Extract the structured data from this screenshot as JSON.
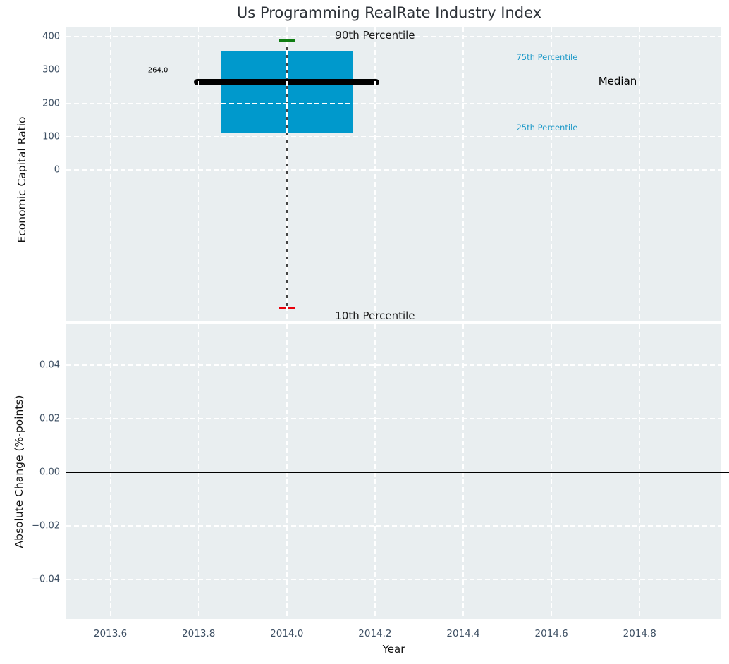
{
  "figure": {
    "title": "Us Programming RealRate Industry Index",
    "plot_bg_color": "#e9eef0",
    "grid_color": "#ffffff",
    "tick_color": "#3d4f63"
  },
  "chart_data": [
    {
      "type": "boxplot",
      "title": "Us Programming RealRate Industry Index",
      "ylabel": "Economic Capital Ratio",
      "xlabel": "",
      "grid": "white-dashed",
      "xlim": [
        2013.5,
        2014.985
      ],
      "ylim": [
        -455,
        430
      ],
      "yticks": [
        400,
        300,
        200,
        100,
        0
      ],
      "ytick_labels": [
        "400",
        "300",
        "200",
        "100",
        "0"
      ],
      "xticks": [
        2013.6,
        2013.8,
        2014.0,
        2014.2,
        2014.4,
        2014.6,
        2014.8
      ],
      "series": [
        {
          "name": "Economic Capital Ratio boxplot",
          "center_x": 2014.0,
          "p10": -415,
          "q1": 112,
          "median": 264,
          "q3": 355,
          "p90": 388,
          "box_span": [
            2013.85,
            2014.15
          ],
          "median_span": [
            2013.79,
            2014.21
          ],
          "cap_half_width": 0.018,
          "colors": {
            "box_fill": "#0099cc",
            "median_line": "#000000",
            "whisker": "#444444",
            "p90_cap": "#0f7d12",
            "p10_cap": "#e8000b"
          }
        }
      ],
      "annotations": [
        {
          "name": "annotation-90th-percentile",
          "text": "90th Percentile",
          "x": 2014.2,
          "y": 405,
          "color": "#1a1a1a",
          "size": 15
        },
        {
          "name": "annotation-10th-percentile",
          "text": "10th Percentile",
          "x": 2014.2,
          "y": -439,
          "color": "#1a1a1a",
          "size": 15
        },
        {
          "name": "annotation-median-value",
          "text": "264.0",
          "x": 2013.708,
          "y": 298,
          "color": "#000000",
          "size": 10
        },
        {
          "name": "annotation-75th-percentile",
          "text": "75th Percentile",
          "x": 2014.59,
          "y": 340,
          "color": "#1f9ac9",
          "size": 11.5
        },
        {
          "name": "annotation-median",
          "text": "Median",
          "x": 2014.75,
          "y": 267,
          "color": "#000000",
          "size": 15
        },
        {
          "name": "annotation-25th-percentile",
          "text": "25th Percentile",
          "x": 2014.59,
          "y": 128,
          "color": "#1f9ac9",
          "size": 11.5
        }
      ]
    },
    {
      "type": "line",
      "title": "",
      "ylabel": "Absolute Change (%-points)",
      "xlabel": "Year",
      "grid": "white-dashed",
      "xlim": [
        2013.5,
        2014.985
      ],
      "ylim": [
        -0.0547,
        0.0553
      ],
      "yticks": [
        0.04,
        0.02,
        0.0,
        -0.02,
        -0.04
      ],
      "ytick_labels": [
        "0.04",
        "0.02",
        "0.00",
        "−0.02",
        "−0.04"
      ],
      "xticks": [
        2013.6,
        2013.8,
        2014.0,
        2014.2,
        2014.4,
        2014.6,
        2014.8
      ],
      "xtick_labels": [
        "2013.6",
        "2013.8",
        "2014.0",
        "2014.2",
        "2014.4",
        "2014.6",
        "2014.8"
      ],
      "series": [],
      "zero_line_y": 0.0
    }
  ]
}
